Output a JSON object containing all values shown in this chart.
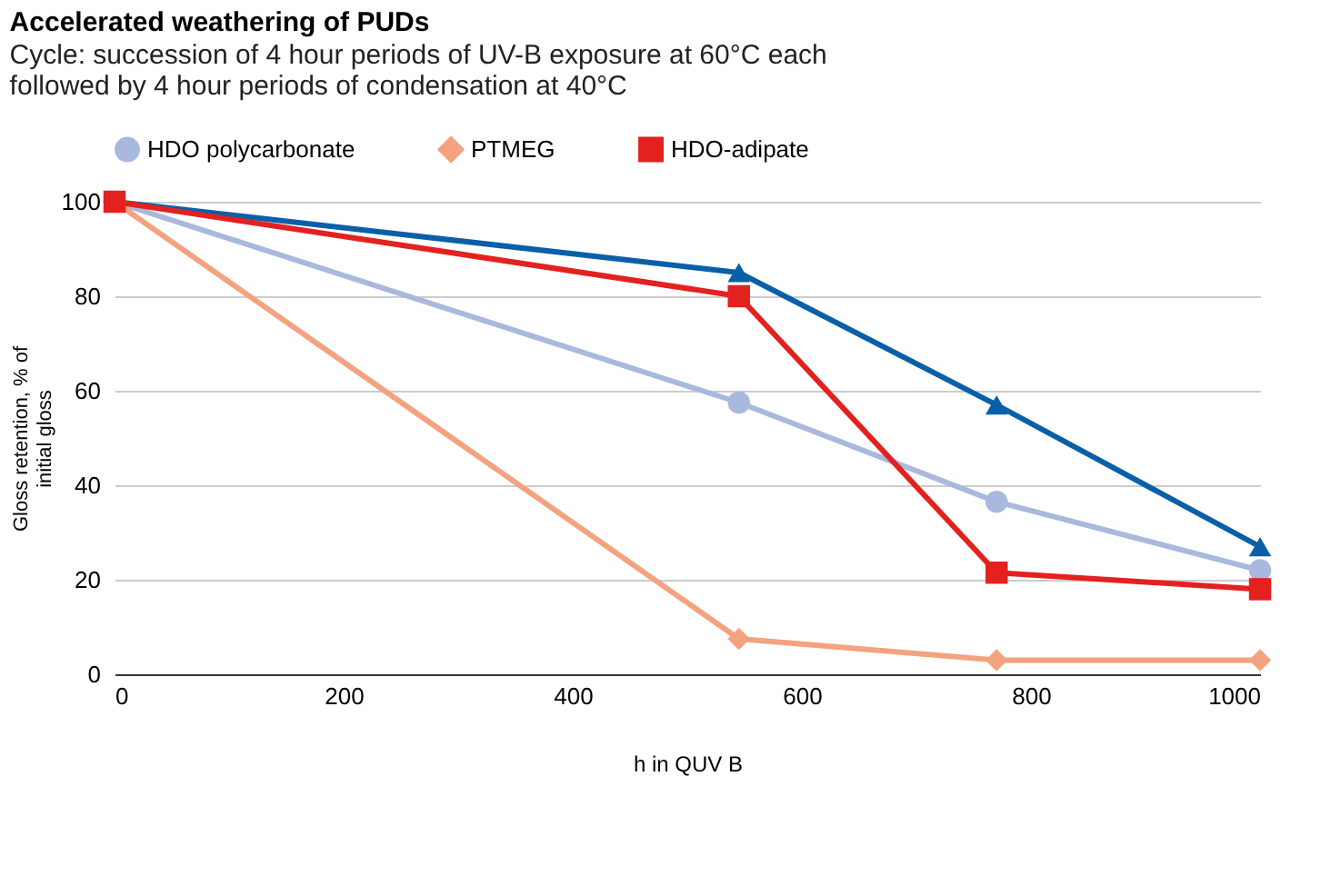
{
  "chart_data": {
    "type": "line",
    "title": "Accelerated weathering of PUDs",
    "subtitle": "Cycle: succession of 4 hour periods of UV-B exposure at 60°C each\nfollowed by 4 hour periods of condensation at 40°C",
    "xlabel": "h in QUV B",
    "ylabel": "Gloss retention, % of\ninitial gloss",
    "x": [
      0,
      545,
      770,
      1000
    ],
    "series": [
      {
        "color": "#0a5fa8",
        "marker": "triangle",
        "values": [
          100,
          85,
          57,
          27
        ]
      },
      {
        "name": "HDO polycarbonate",
        "color": "#a9b9dd",
        "marker": "circle",
        "values": [
          100,
          57.5,
          36.5,
          22
        ]
      },
      {
        "name": "PTMEG",
        "color": "#f4a27f",
        "marker": "diamond",
        "values": [
          100,
          7.5,
          3,
          3
        ]
      },
      {
        "name": "HDO-adipate",
        "color": "#e3211f",
        "marker": "square",
        "values": [
          100,
          80,
          21.5,
          18
        ]
      }
    ],
    "xlim": [
      0,
      1000
    ],
    "xticks": [
      0,
      200,
      400,
      600,
      800,
      1000
    ],
    "ylim": [
      0,
      100
    ],
    "yticks": [
      0,
      20,
      40,
      60,
      80,
      100
    ],
    "grid": "y",
    "legend": "top",
    "line_style": "solid"
  }
}
